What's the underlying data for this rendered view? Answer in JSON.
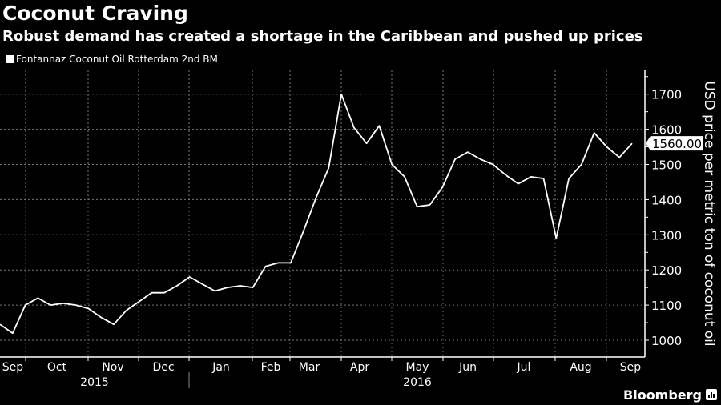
{
  "header": {
    "title": "Coconut Craving",
    "subtitle": "Robust demand has created a shortage in the Caribbean and pushed up prices"
  },
  "footer": {
    "brand": "Bloomberg",
    "brand_icon": "bloomberg-terminal-icon"
  },
  "colors": {
    "background": "#000000",
    "line": "#ffffff",
    "grid": "#888888"
  },
  "chart_data": {
    "type": "line",
    "title": "Coconut Craving",
    "subtitle": "Robust demand has created a shortage in the Caribbean and pushed up prices",
    "xlabel": "",
    "ylabel": "USD price per metric ton of coconut oil",
    "ylim": [
      950,
      1780
    ],
    "yticks": [
      1000,
      1100,
      1200,
      1300,
      1400,
      1500,
      1600,
      1700
    ],
    "grid": true,
    "legend": {
      "position": "top-left",
      "entries": [
        "Fontannaz Coconut Oil Rotterdam 2nd BM"
      ]
    },
    "last_value_label": "1560.00",
    "month_ticks": [
      "Sep",
      "Oct",
      "Nov",
      "Dec",
      "Jan",
      "Feb",
      "Mar",
      "Apr",
      "May",
      "Jun",
      "Jul",
      "Aug",
      "Sep"
    ],
    "year_labels": [
      "2015",
      "2016"
    ],
    "series": [
      {
        "name": "Fontannaz Coconut Oil Rotterdam 2nd BM",
        "values": [
          1045,
          1020,
          1100,
          1120,
          1100,
          1105,
          1100,
          1090,
          1065,
          1045,
          1085,
          1110,
          1135,
          1135,
          1155,
          1180,
          1160,
          1140,
          1150,
          1155,
          1150,
          1210,
          1220,
          1220,
          1310,
          1405,
          1490,
          1700,
          1605,
          1560,
          1610,
          1500,
          1465,
          1380,
          1385,
          1435,
          1515,
          1535,
          1515,
          1500,
          1470,
          1445,
          1465,
          1460,
          1290,
          1460,
          1500,
          1590,
          1550,
          1520,
          1560
        ]
      }
    ]
  }
}
